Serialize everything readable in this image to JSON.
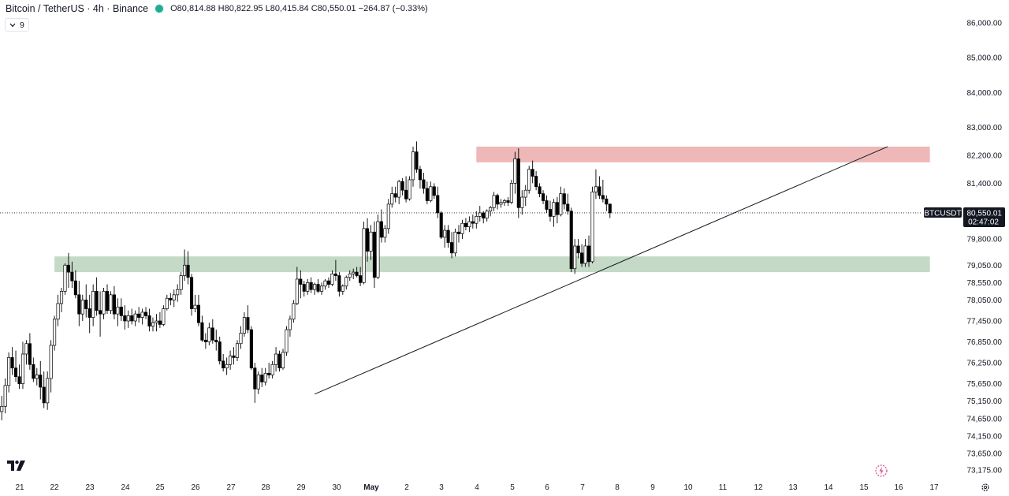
{
  "header": {
    "title": "Bitcoin / TetherUS · 4h · Binance",
    "ohlc": "O80,814.88 H80,822.95 L80,415.84 C80,550.01 −264.87 (−0.33%)",
    "indicator_count": "9"
  },
  "price_tag": {
    "symbol": "BTCUSDT",
    "price": "80,550.01",
    "countdown": "02:47:02"
  },
  "colors": {
    "resistance_zone": "#eeb7b8",
    "support_zone": "#c4d9c6",
    "candle_up_body": "#ffffff",
    "candle_down_body": "#000000",
    "wick": "#000000",
    "live_dot": "#22ab94"
  },
  "chart_data": {
    "type": "candlestick",
    "symbol": "BTCUSDT",
    "interval": "4h",
    "ylim": [
      72900,
      86400
    ],
    "y_ticks": [
      "86,000.00",
      "85,000.00",
      "84,000.00",
      "83,000.00",
      "82,200.00",
      "81,400.00",
      "80,550.01",
      "79,800.00",
      "79,050.00",
      "78,550.00",
      "78,050.00",
      "77,450.00",
      "76,850.00",
      "76,250.00",
      "75,650.00",
      "75,150.00",
      "74,650.00",
      "74,150.00",
      "73,650.00",
      "73,175.00"
    ],
    "y_tick_values": [
      86000,
      85000,
      84000,
      83000,
      82200,
      81400,
      80550.01,
      79800,
      79050,
      78550,
      78050,
      77450,
      76850,
      76250,
      75650,
      75150,
      74650,
      74150,
      73650,
      73175
    ],
    "x_ticks": [
      "21",
      "22",
      "23",
      "24",
      "25",
      "26",
      "27",
      "28",
      "29",
      "30",
      "May",
      "2",
      "3",
      "4",
      "5",
      "6",
      "7",
      "8",
      "9",
      "10",
      "11",
      "12",
      "13",
      "14",
      "15",
      "16",
      "17"
    ],
    "zones": [
      {
        "name": "resistance",
        "start_index": 135,
        "end_index": 264,
        "low": 82000,
        "high": 82450
      },
      {
        "name": "support",
        "start_index": 15,
        "end_index": 264,
        "low": 78850,
        "high": 79300
      }
    ],
    "trendline": {
      "start_index": 89,
      "start_price": 75350,
      "end_index": 252,
      "end_price": 82450
    },
    "last_price": 80550.01,
    "candles": [
      {
        "o": 74850,
        "h": 75300,
        "l": 74600,
        "c": 75000
      },
      {
        "o": 75000,
        "h": 75800,
        "l": 74800,
        "c": 75600
      },
      {
        "o": 75600,
        "h": 76550,
        "l": 75400,
        "c": 76400
      },
      {
        "o": 76400,
        "h": 76700,
        "l": 75900,
        "c": 76100
      },
      {
        "o": 76100,
        "h": 76600,
        "l": 75700,
        "c": 75850
      },
      {
        "o": 75850,
        "h": 76200,
        "l": 75500,
        "c": 75650
      },
      {
        "o": 75650,
        "h": 76850,
        "l": 75500,
        "c": 76500
      },
      {
        "o": 76500,
        "h": 76900,
        "l": 76200,
        "c": 76800
      },
      {
        "o": 76800,
        "h": 77100,
        "l": 76050,
        "c": 76200
      },
      {
        "o": 76200,
        "h": 76400,
        "l": 75700,
        "c": 75800
      },
      {
        "o": 75800,
        "h": 76100,
        "l": 75600,
        "c": 75900
      },
      {
        "o": 75900,
        "h": 76300,
        "l": 75200,
        "c": 75550
      },
      {
        "o": 75550,
        "h": 76000,
        "l": 74950,
        "c": 75100
      },
      {
        "o": 75100,
        "h": 76000,
        "l": 74900,
        "c": 75800
      },
      {
        "o": 75800,
        "h": 76900,
        "l": 75400,
        "c": 76750
      },
      {
        "o": 76750,
        "h": 77600,
        "l": 76600,
        "c": 77500
      },
      {
        "o": 77500,
        "h": 78200,
        "l": 77300,
        "c": 77950
      },
      {
        "o": 77950,
        "h": 78400,
        "l": 77700,
        "c": 78300
      },
      {
        "o": 78300,
        "h": 79100,
        "l": 78200,
        "c": 79050
      },
      {
        "o": 79050,
        "h": 79400,
        "l": 78400,
        "c": 78850
      },
      {
        "o": 78850,
        "h": 79150,
        "l": 78400,
        "c": 78600
      },
      {
        "o": 78600,
        "h": 78900,
        "l": 78100,
        "c": 78200
      },
      {
        "o": 78200,
        "h": 78600,
        "l": 77300,
        "c": 77650
      },
      {
        "o": 77650,
        "h": 78200,
        "l": 77450,
        "c": 78050
      },
      {
        "o": 78050,
        "h": 78500,
        "l": 77550,
        "c": 77800
      },
      {
        "o": 77800,
        "h": 78200,
        "l": 77100,
        "c": 77550
      },
      {
        "o": 77550,
        "h": 78500,
        "l": 77300,
        "c": 78300
      },
      {
        "o": 78300,
        "h": 78700,
        "l": 77600,
        "c": 77750
      },
      {
        "o": 77750,
        "h": 78300,
        "l": 77000,
        "c": 77650
      },
      {
        "o": 77650,
        "h": 78400,
        "l": 77500,
        "c": 78300
      },
      {
        "o": 78300,
        "h": 78500,
        "l": 77650,
        "c": 77750
      },
      {
        "o": 77750,
        "h": 78300,
        "l": 77650,
        "c": 78200
      },
      {
        "o": 78200,
        "h": 78450,
        "l": 77500,
        "c": 77650
      },
      {
        "o": 77650,
        "h": 78100,
        "l": 77300,
        "c": 77850
      },
      {
        "o": 77850,
        "h": 78100,
        "l": 77450,
        "c": 77600
      },
      {
        "o": 77600,
        "h": 77900,
        "l": 77200,
        "c": 77450
      },
      {
        "o": 77450,
        "h": 77750,
        "l": 77250,
        "c": 77600
      },
      {
        "o": 77600,
        "h": 77800,
        "l": 77350,
        "c": 77450
      },
      {
        "o": 77450,
        "h": 77750,
        "l": 77300,
        "c": 77650
      },
      {
        "o": 77650,
        "h": 77850,
        "l": 77400,
        "c": 77550
      },
      {
        "o": 77550,
        "h": 77800,
        "l": 77350,
        "c": 77700
      },
      {
        "o": 77700,
        "h": 77850,
        "l": 77500,
        "c": 77600
      },
      {
        "o": 77600,
        "h": 77800,
        "l": 77150,
        "c": 77300
      },
      {
        "o": 77300,
        "h": 77550,
        "l": 77150,
        "c": 77400
      },
      {
        "o": 77400,
        "h": 77650,
        "l": 77150,
        "c": 77450
      },
      {
        "o": 77450,
        "h": 77700,
        "l": 77250,
        "c": 77350
      },
      {
        "o": 77350,
        "h": 77900,
        "l": 77300,
        "c": 77800
      },
      {
        "o": 77800,
        "h": 78200,
        "l": 77750,
        "c": 78100
      },
      {
        "o": 78100,
        "h": 78250,
        "l": 77900,
        "c": 78050
      },
      {
        "o": 78050,
        "h": 78350,
        "l": 77850,
        "c": 78200
      },
      {
        "o": 78200,
        "h": 78500,
        "l": 78000,
        "c": 78350
      },
      {
        "o": 78350,
        "h": 78850,
        "l": 78200,
        "c": 78750
      },
      {
        "o": 78750,
        "h": 79500,
        "l": 78600,
        "c": 79050
      },
      {
        "o": 79050,
        "h": 79450,
        "l": 78500,
        "c": 78700
      },
      {
        "o": 78700,
        "h": 78800,
        "l": 77600,
        "c": 77800
      },
      {
        "o": 77800,
        "h": 78200,
        "l": 77700,
        "c": 77900
      },
      {
        "o": 77900,
        "h": 78200,
        "l": 77300,
        "c": 77400
      },
      {
        "o": 77400,
        "h": 77600,
        "l": 76850,
        "c": 76900
      },
      {
        "o": 76900,
        "h": 77100,
        "l": 76650,
        "c": 76850
      },
      {
        "o": 76850,
        "h": 77400,
        "l": 76750,
        "c": 77250
      },
      {
        "o": 77250,
        "h": 77500,
        "l": 76800,
        "c": 76900
      },
      {
        "o": 76900,
        "h": 77200,
        "l": 76600,
        "c": 76850
      },
      {
        "o": 76850,
        "h": 77000,
        "l": 76200,
        "c": 76300
      },
      {
        "o": 76300,
        "h": 76500,
        "l": 76000,
        "c": 76100
      },
      {
        "o": 76100,
        "h": 76400,
        "l": 75900,
        "c": 76200
      },
      {
        "o": 76200,
        "h": 76600,
        "l": 76050,
        "c": 76450
      },
      {
        "o": 76450,
        "h": 76700,
        "l": 76200,
        "c": 76400
      },
      {
        "o": 76400,
        "h": 76900,
        "l": 76300,
        "c": 76800
      },
      {
        "o": 76800,
        "h": 77300,
        "l": 76650,
        "c": 77100
      },
      {
        "o": 77100,
        "h": 77700,
        "l": 77000,
        "c": 77550
      },
      {
        "o": 77550,
        "h": 77900,
        "l": 77100,
        "c": 77200
      },
      {
        "o": 77200,
        "h": 77300,
        "l": 76050,
        "c": 76100
      },
      {
        "o": 76100,
        "h": 76250,
        "l": 75100,
        "c": 75500
      },
      {
        "o": 75500,
        "h": 76000,
        "l": 75350,
        "c": 75900
      },
      {
        "o": 75900,
        "h": 76100,
        "l": 75550,
        "c": 75700
      },
      {
        "o": 75700,
        "h": 76100,
        "l": 75600,
        "c": 75950
      },
      {
        "o": 75950,
        "h": 76250,
        "l": 75800,
        "c": 75900
      },
      {
        "o": 75900,
        "h": 76300,
        "l": 75800,
        "c": 76200
      },
      {
        "o": 76200,
        "h": 76700,
        "l": 76000,
        "c": 76500
      },
      {
        "o": 76500,
        "h": 76600,
        "l": 76000,
        "c": 76100
      },
      {
        "o": 76100,
        "h": 76650,
        "l": 76050,
        "c": 76550
      },
      {
        "o": 76550,
        "h": 77300,
        "l": 76450,
        "c": 77200
      },
      {
        "o": 77200,
        "h": 77600,
        "l": 77000,
        "c": 77500
      },
      {
        "o": 77500,
        "h": 78050,
        "l": 77400,
        "c": 77950
      },
      {
        "o": 77950,
        "h": 79000,
        "l": 77900,
        "c": 78650
      },
      {
        "o": 78650,
        "h": 78900,
        "l": 78100,
        "c": 78500
      },
      {
        "o": 78500,
        "h": 78600,
        "l": 78150,
        "c": 78300
      },
      {
        "o": 78300,
        "h": 78650,
        "l": 78200,
        "c": 78550
      },
      {
        "o": 78550,
        "h": 78700,
        "l": 78250,
        "c": 78350
      },
      {
        "o": 78350,
        "h": 78550,
        "l": 78200,
        "c": 78500
      },
      {
        "o": 78500,
        "h": 78650,
        "l": 78250,
        "c": 78300
      },
      {
        "o": 78300,
        "h": 78550,
        "l": 78200,
        "c": 78450
      },
      {
        "o": 78450,
        "h": 78650,
        "l": 78350,
        "c": 78600
      },
      {
        "o": 78600,
        "h": 78700,
        "l": 78400,
        "c": 78500
      },
      {
        "o": 78500,
        "h": 78900,
        "l": 78450,
        "c": 78800
      },
      {
        "o": 78800,
        "h": 79200,
        "l": 78600,
        "c": 78750
      },
      {
        "o": 78750,
        "h": 78850,
        "l": 78150,
        "c": 78300
      },
      {
        "o": 78300,
        "h": 78500,
        "l": 78200,
        "c": 78450
      },
      {
        "o": 78450,
        "h": 78750,
        "l": 78350,
        "c": 78700
      },
      {
        "o": 78700,
        "h": 78900,
        "l": 78600,
        "c": 78800
      },
      {
        "o": 78800,
        "h": 78950,
        "l": 78650,
        "c": 78850
      },
      {
        "o": 78850,
        "h": 79000,
        "l": 78700,
        "c": 78750
      },
      {
        "o": 78750,
        "h": 79000,
        "l": 78450,
        "c": 78550
      },
      {
        "o": 78550,
        "h": 80300,
        "l": 78500,
        "c": 80100
      },
      {
        "o": 80100,
        "h": 80400,
        "l": 79150,
        "c": 79450
      },
      {
        "o": 79450,
        "h": 80200,
        "l": 79200,
        "c": 80000
      },
      {
        "o": 80000,
        "h": 80300,
        "l": 78400,
        "c": 78700
      },
      {
        "o": 78700,
        "h": 80500,
        "l": 78650,
        "c": 80300
      },
      {
        "o": 80300,
        "h": 80650,
        "l": 79700,
        "c": 79850
      },
      {
        "o": 79850,
        "h": 80200,
        "l": 79700,
        "c": 80100
      },
      {
        "o": 80100,
        "h": 80950,
        "l": 79950,
        "c": 80800
      },
      {
        "o": 80800,
        "h": 81300,
        "l": 80700,
        "c": 81100
      },
      {
        "o": 81100,
        "h": 81300,
        "l": 80850,
        "c": 81000
      },
      {
        "o": 81000,
        "h": 81500,
        "l": 80800,
        "c": 81450
      },
      {
        "o": 81450,
        "h": 81550,
        "l": 81050,
        "c": 81200
      },
      {
        "o": 81200,
        "h": 81600,
        "l": 80850,
        "c": 80950
      },
      {
        "o": 80950,
        "h": 81600,
        "l": 80900,
        "c": 81500
      },
      {
        "o": 81500,
        "h": 82450,
        "l": 81300,
        "c": 82300
      },
      {
        "o": 82300,
        "h": 82600,
        "l": 81700,
        "c": 81800
      },
      {
        "o": 81800,
        "h": 81900,
        "l": 81250,
        "c": 81500
      },
      {
        "o": 81500,
        "h": 81700,
        "l": 81100,
        "c": 81250
      },
      {
        "o": 81250,
        "h": 81450,
        "l": 80800,
        "c": 80900
      },
      {
        "o": 80900,
        "h": 81450,
        "l": 80850,
        "c": 81300
      },
      {
        "o": 81300,
        "h": 81400,
        "l": 80950,
        "c": 81050
      },
      {
        "o": 81050,
        "h": 81300,
        "l": 80400,
        "c": 80550
      },
      {
        "o": 80550,
        "h": 80600,
        "l": 79800,
        "c": 79850
      },
      {
        "o": 79850,
        "h": 80200,
        "l": 79550,
        "c": 80050
      },
      {
        "o": 80050,
        "h": 80200,
        "l": 79550,
        "c": 79700
      },
      {
        "o": 79700,
        "h": 80000,
        "l": 79250,
        "c": 79400
      },
      {
        "o": 79400,
        "h": 80100,
        "l": 79300,
        "c": 80000
      },
      {
        "o": 80000,
        "h": 80200,
        "l": 79700,
        "c": 79950
      },
      {
        "o": 79950,
        "h": 80350,
        "l": 79800,
        "c": 80250
      },
      {
        "o": 80250,
        "h": 80400,
        "l": 80050,
        "c": 80150
      },
      {
        "o": 80150,
        "h": 80450,
        "l": 80000,
        "c": 80300
      },
      {
        "o": 80300,
        "h": 80500,
        "l": 80100,
        "c": 80250
      },
      {
        "o": 80250,
        "h": 80600,
        "l": 80100,
        "c": 80450
      },
      {
        "o": 80450,
        "h": 80750,
        "l": 80300,
        "c": 80550
      },
      {
        "o": 80550,
        "h": 80600,
        "l": 80250,
        "c": 80400
      },
      {
        "o": 80400,
        "h": 80650,
        "l": 80300,
        "c": 80600
      },
      {
        "o": 80600,
        "h": 80750,
        "l": 80450,
        "c": 80700
      },
      {
        "o": 80700,
        "h": 81150,
        "l": 80600,
        "c": 81050
      },
      {
        "o": 81050,
        "h": 81100,
        "l": 80650,
        "c": 80800
      },
      {
        "o": 80800,
        "h": 80950,
        "l": 80700,
        "c": 80850
      },
      {
        "o": 80850,
        "h": 80950,
        "l": 80750,
        "c": 80900
      },
      {
        "o": 80900,
        "h": 81000,
        "l": 80750,
        "c": 80850
      },
      {
        "o": 80850,
        "h": 81500,
        "l": 80800,
        "c": 81400
      },
      {
        "o": 81400,
        "h": 82300,
        "l": 81100,
        "c": 82100
      },
      {
        "o": 82100,
        "h": 82400,
        "l": 80400,
        "c": 80700
      },
      {
        "o": 80700,
        "h": 81200,
        "l": 80500,
        "c": 81000
      },
      {
        "o": 81000,
        "h": 81350,
        "l": 80750,
        "c": 81200
      },
      {
        "o": 81200,
        "h": 81900,
        "l": 81100,
        "c": 81800
      },
      {
        "o": 81800,
        "h": 82050,
        "l": 81400,
        "c": 81600
      },
      {
        "o": 81600,
        "h": 81750,
        "l": 81200,
        "c": 81300
      },
      {
        "o": 81300,
        "h": 81400,
        "l": 81000,
        "c": 81100
      },
      {
        "o": 81100,
        "h": 81200,
        "l": 80800,
        "c": 80900
      },
      {
        "o": 80900,
        "h": 81050,
        "l": 80550,
        "c": 80650
      },
      {
        "o": 80650,
        "h": 80900,
        "l": 80300,
        "c": 80450
      },
      {
        "o": 80450,
        "h": 80950,
        "l": 80150,
        "c": 80850
      },
      {
        "o": 80850,
        "h": 81000,
        "l": 80250,
        "c": 80500
      },
      {
        "o": 80500,
        "h": 81300,
        "l": 80450,
        "c": 81100
      },
      {
        "o": 81100,
        "h": 81250,
        "l": 80650,
        "c": 80800
      },
      {
        "o": 80800,
        "h": 81100,
        "l": 80500,
        "c": 80600
      },
      {
        "o": 80600,
        "h": 80700,
        "l": 78850,
        "c": 78950
      },
      {
        "o": 78950,
        "h": 79800,
        "l": 78800,
        "c": 79600
      },
      {
        "o": 79600,
        "h": 79800,
        "l": 79250,
        "c": 79400
      },
      {
        "o": 79400,
        "h": 79650,
        "l": 79000,
        "c": 79100
      },
      {
        "o": 79100,
        "h": 79800,
        "l": 79000,
        "c": 79600
      },
      {
        "o": 79600,
        "h": 79900,
        "l": 79000,
        "c": 79150
      },
      {
        "o": 79150,
        "h": 81300,
        "l": 79100,
        "c": 81150
      },
      {
        "o": 81150,
        "h": 81800,
        "l": 80950,
        "c": 81300
      },
      {
        "o": 81300,
        "h": 81600,
        "l": 80950,
        "c": 81050
      },
      {
        "o": 81050,
        "h": 81500,
        "l": 80850,
        "c": 80950
      },
      {
        "o": 80950,
        "h": 81050,
        "l": 80600,
        "c": 80800
      },
      {
        "o": 80800,
        "h": 80820,
        "l": 80400,
        "c": 80550
      }
    ]
  }
}
